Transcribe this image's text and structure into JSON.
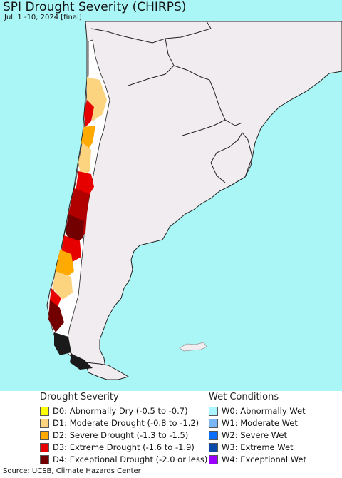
{
  "map": {
    "title": "SPI Drought Severity (CHIRPS)",
    "subtitle": "Jul. 1 -10, 2024 [final]",
    "ocean_color": "#aaf5f5",
    "land_color": "#f0ecef",
    "border_color": "#222222"
  },
  "legend": {
    "drought_heading": "Drought Severity",
    "wet_heading": "Wet Conditions",
    "drought_items": [
      {
        "label": "D0: Abnormally Dry (-0.5 to -0.7)",
        "color": "#ffff00"
      },
      {
        "label": "D1: Moderate Drought (-0.8 to -1.2)",
        "color": "#fcd37f"
      },
      {
        "label": "D2: Severe Drought (-1.3 to -1.5)",
        "color": "#ffaa00"
      },
      {
        "label": "D3: Extreme Drought (-1.6 to -1.9)",
        "color": "#e60000"
      },
      {
        "label": "D4: Exceptional Drought (-2.0 or less)",
        "color": "#730000"
      }
    ],
    "wet_items": [
      {
        "label": "W0: Abnormally Wet",
        "color": "#aaf5ff"
      },
      {
        "label": "W1: Moderate Wet",
        "color": "#7ab6f5"
      },
      {
        "label": "W2: Severe Wet",
        "color": "#0a6eff"
      },
      {
        "label": "W3: Extreme Wet",
        "color": "#0a4aa8"
      },
      {
        "label": "W4: Exceptional Wet",
        "color": "#9b00ff"
      }
    ]
  },
  "footer": {
    "source": "Source: UCSB, Climate Hazards Center"
  }
}
